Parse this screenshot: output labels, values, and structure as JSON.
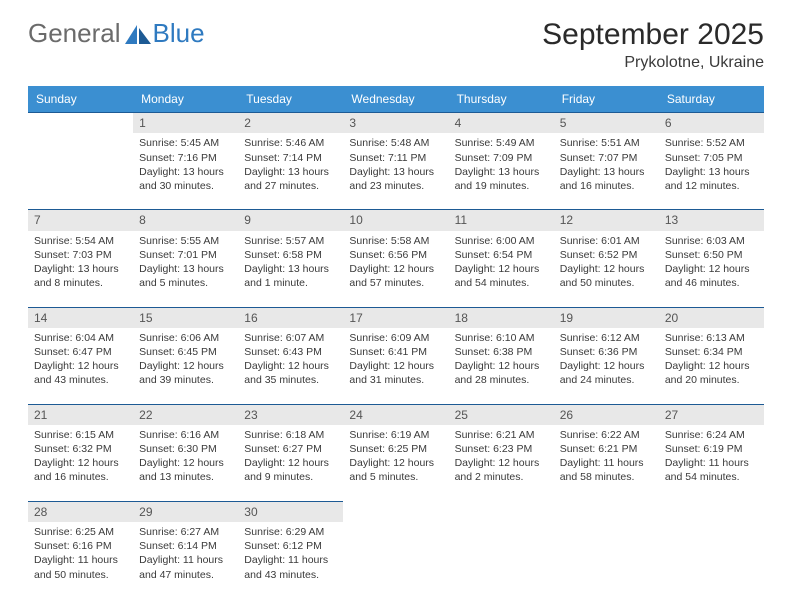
{
  "logo": {
    "text1": "General",
    "text2": "Blue"
  },
  "header": {
    "month_year": "September 2025",
    "location": "Prykolotne, Ukraine"
  },
  "colors": {
    "header_blue": "#3b8fd1",
    "rule_blue": "#1d5a94",
    "daynum_bg": "#e8e8e8",
    "text": "#3a3a3a",
    "logo_gray": "#6b6b6b",
    "logo_blue": "#2f7ac0"
  },
  "days_of_week": [
    "Sunday",
    "Monday",
    "Tuesday",
    "Wednesday",
    "Thursday",
    "Friday",
    "Saturday"
  ],
  "weeks": [
    [
      {
        "blank": true
      },
      {
        "n": "1",
        "sr": "Sunrise: 5:45 AM",
        "ss": "Sunset: 7:16 PM",
        "d1": "Daylight: 13 hours",
        "d2": "and 30 minutes."
      },
      {
        "n": "2",
        "sr": "Sunrise: 5:46 AM",
        "ss": "Sunset: 7:14 PM",
        "d1": "Daylight: 13 hours",
        "d2": "and 27 minutes."
      },
      {
        "n": "3",
        "sr": "Sunrise: 5:48 AM",
        "ss": "Sunset: 7:11 PM",
        "d1": "Daylight: 13 hours",
        "d2": "and 23 minutes."
      },
      {
        "n": "4",
        "sr": "Sunrise: 5:49 AM",
        "ss": "Sunset: 7:09 PM",
        "d1": "Daylight: 13 hours",
        "d2": "and 19 minutes."
      },
      {
        "n": "5",
        "sr": "Sunrise: 5:51 AM",
        "ss": "Sunset: 7:07 PM",
        "d1": "Daylight: 13 hours",
        "d2": "and 16 minutes."
      },
      {
        "n": "6",
        "sr": "Sunrise: 5:52 AM",
        "ss": "Sunset: 7:05 PM",
        "d1": "Daylight: 13 hours",
        "d2": "and 12 minutes."
      }
    ],
    [
      {
        "n": "7",
        "sr": "Sunrise: 5:54 AM",
        "ss": "Sunset: 7:03 PM",
        "d1": "Daylight: 13 hours",
        "d2": "and 8 minutes."
      },
      {
        "n": "8",
        "sr": "Sunrise: 5:55 AM",
        "ss": "Sunset: 7:01 PM",
        "d1": "Daylight: 13 hours",
        "d2": "and 5 minutes."
      },
      {
        "n": "9",
        "sr": "Sunrise: 5:57 AM",
        "ss": "Sunset: 6:58 PM",
        "d1": "Daylight: 13 hours",
        "d2": "and 1 minute."
      },
      {
        "n": "10",
        "sr": "Sunrise: 5:58 AM",
        "ss": "Sunset: 6:56 PM",
        "d1": "Daylight: 12 hours",
        "d2": "and 57 minutes."
      },
      {
        "n": "11",
        "sr": "Sunrise: 6:00 AM",
        "ss": "Sunset: 6:54 PM",
        "d1": "Daylight: 12 hours",
        "d2": "and 54 minutes."
      },
      {
        "n": "12",
        "sr": "Sunrise: 6:01 AM",
        "ss": "Sunset: 6:52 PM",
        "d1": "Daylight: 12 hours",
        "d2": "and 50 minutes."
      },
      {
        "n": "13",
        "sr": "Sunrise: 6:03 AM",
        "ss": "Sunset: 6:50 PM",
        "d1": "Daylight: 12 hours",
        "d2": "and 46 minutes."
      }
    ],
    [
      {
        "n": "14",
        "sr": "Sunrise: 6:04 AM",
        "ss": "Sunset: 6:47 PM",
        "d1": "Daylight: 12 hours",
        "d2": "and 43 minutes."
      },
      {
        "n": "15",
        "sr": "Sunrise: 6:06 AM",
        "ss": "Sunset: 6:45 PM",
        "d1": "Daylight: 12 hours",
        "d2": "and 39 minutes."
      },
      {
        "n": "16",
        "sr": "Sunrise: 6:07 AM",
        "ss": "Sunset: 6:43 PM",
        "d1": "Daylight: 12 hours",
        "d2": "and 35 minutes."
      },
      {
        "n": "17",
        "sr": "Sunrise: 6:09 AM",
        "ss": "Sunset: 6:41 PM",
        "d1": "Daylight: 12 hours",
        "d2": "and 31 minutes."
      },
      {
        "n": "18",
        "sr": "Sunrise: 6:10 AM",
        "ss": "Sunset: 6:38 PM",
        "d1": "Daylight: 12 hours",
        "d2": "and 28 minutes."
      },
      {
        "n": "19",
        "sr": "Sunrise: 6:12 AM",
        "ss": "Sunset: 6:36 PM",
        "d1": "Daylight: 12 hours",
        "d2": "and 24 minutes."
      },
      {
        "n": "20",
        "sr": "Sunrise: 6:13 AM",
        "ss": "Sunset: 6:34 PM",
        "d1": "Daylight: 12 hours",
        "d2": "and 20 minutes."
      }
    ],
    [
      {
        "n": "21",
        "sr": "Sunrise: 6:15 AM",
        "ss": "Sunset: 6:32 PM",
        "d1": "Daylight: 12 hours",
        "d2": "and 16 minutes."
      },
      {
        "n": "22",
        "sr": "Sunrise: 6:16 AM",
        "ss": "Sunset: 6:30 PM",
        "d1": "Daylight: 12 hours",
        "d2": "and 13 minutes."
      },
      {
        "n": "23",
        "sr": "Sunrise: 6:18 AM",
        "ss": "Sunset: 6:27 PM",
        "d1": "Daylight: 12 hours",
        "d2": "and 9 minutes."
      },
      {
        "n": "24",
        "sr": "Sunrise: 6:19 AM",
        "ss": "Sunset: 6:25 PM",
        "d1": "Daylight: 12 hours",
        "d2": "and 5 minutes."
      },
      {
        "n": "25",
        "sr": "Sunrise: 6:21 AM",
        "ss": "Sunset: 6:23 PM",
        "d1": "Daylight: 12 hours",
        "d2": "and 2 minutes."
      },
      {
        "n": "26",
        "sr": "Sunrise: 6:22 AM",
        "ss": "Sunset: 6:21 PM",
        "d1": "Daylight: 11 hours",
        "d2": "and 58 minutes."
      },
      {
        "n": "27",
        "sr": "Sunrise: 6:24 AM",
        "ss": "Sunset: 6:19 PM",
        "d1": "Daylight: 11 hours",
        "d2": "and 54 minutes."
      }
    ],
    [
      {
        "n": "28",
        "sr": "Sunrise: 6:25 AM",
        "ss": "Sunset: 6:16 PM",
        "d1": "Daylight: 11 hours",
        "d2": "and 50 minutes."
      },
      {
        "n": "29",
        "sr": "Sunrise: 6:27 AM",
        "ss": "Sunset: 6:14 PM",
        "d1": "Daylight: 11 hours",
        "d2": "and 47 minutes."
      },
      {
        "n": "30",
        "sr": "Sunrise: 6:29 AM",
        "ss": "Sunset: 6:12 PM",
        "d1": "Daylight: 11 hours",
        "d2": "and 43 minutes."
      },
      {
        "blank": true
      },
      {
        "blank": true
      },
      {
        "blank": true
      },
      {
        "blank": true
      }
    ]
  ]
}
